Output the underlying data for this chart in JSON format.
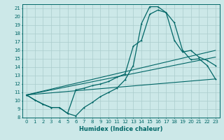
{
  "xlabel": "Humidex (Indice chaleur)",
  "bg_color": "#cce8e8",
  "grid_color": "#aacccc",
  "line_color": "#006666",
  "xlim": [
    -0.5,
    23.5
  ],
  "ylim": [
    8,
    21.5
  ],
  "yticks": [
    8,
    9,
    10,
    11,
    12,
    13,
    14,
    15,
    16,
    17,
    18,
    19,
    20,
    21
  ],
  "xticks": [
    0,
    1,
    2,
    3,
    4,
    5,
    6,
    7,
    8,
    9,
    10,
    11,
    12,
    13,
    14,
    15,
    16,
    17,
    18,
    19,
    20,
    21,
    22,
    23
  ],
  "series1_x": [
    0,
    1,
    2,
    3,
    4,
    5,
    6,
    7,
    8,
    9,
    10,
    11,
    12,
    13,
    14,
    15,
    16,
    17,
    18,
    19,
    20,
    21,
    22,
    23
  ],
  "series1_y": [
    10.7,
    10.1,
    9.6,
    9.2,
    9.2,
    8.5,
    8.2,
    9.2,
    9.8,
    10.5,
    11.0,
    11.5,
    12.5,
    14.2,
    19.2,
    21.2,
    21.2,
    20.5,
    19.3,
    16.0,
    14.9,
    15.0,
    14.2,
    12.6
  ],
  "series2_x": [
    0,
    1,
    2,
    3,
    4,
    5,
    6,
    7,
    8,
    9,
    10,
    11,
    12,
    13,
    14,
    15,
    16,
    17,
    18,
    19,
    20,
    21,
    22,
    23
  ],
  "series2_y": [
    10.7,
    10.1,
    9.6,
    9.2,
    9.2,
    8.5,
    11.3,
    11.5,
    11.8,
    12.0,
    12.3,
    12.8,
    13.2,
    16.5,
    17.2,
    20.3,
    20.8,
    20.5,
    17.2,
    15.8,
    16.0,
    15.2,
    14.8,
    14.2
  ],
  "series3_x": [
    0,
    23
  ],
  "series3_y": [
    10.7,
    12.6
  ],
  "series4_x": [
    0,
    23
  ],
  "series4_y": [
    10.7,
    16.0
  ],
  "series5_x": [
    0,
    23
  ],
  "series5_y": [
    10.7,
    15.2
  ]
}
